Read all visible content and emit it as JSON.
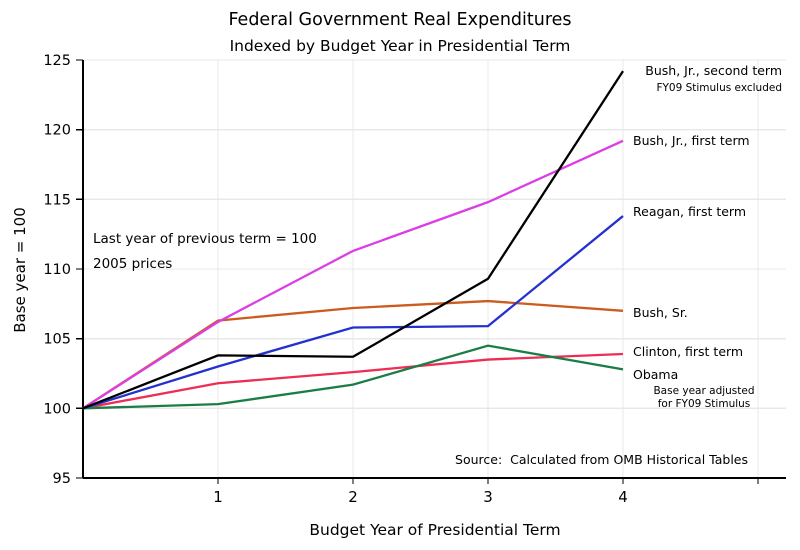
{
  "chart_data": {
    "type": "line",
    "title": "Federal Government Real Expenditures",
    "subtitle": "Indexed by Budget Year in Presidential Term",
    "xlabel": "Budget Year of Presidential Term",
    "ylabel": "Base year = 100",
    "x": [
      0,
      1,
      2,
      3,
      4
    ],
    "xticks": [
      1,
      2,
      3,
      4
    ],
    "yticks": [
      95,
      100,
      105,
      110,
      115,
      120,
      125
    ],
    "xlim": [
      0,
      5.2
    ],
    "ylim": [
      95,
      125
    ],
    "grid": true,
    "series": [
      {
        "name": "Bush, Jr., second term",
        "note": "FY09 Stimulus excluded",
        "color": "#000000",
        "values": [
          100,
          103.8,
          103.7,
          109.3,
          124.2
        ]
      },
      {
        "name": "Bush, Jr., first term",
        "color": "#DC3DE6",
        "values": [
          100,
          106.2,
          111.3,
          114.8,
          119.2
        ]
      },
      {
        "name": "Reagan, first term",
        "color": "#2531CE",
        "values": [
          100,
          103.0,
          105.8,
          105.9,
          113.8
        ]
      },
      {
        "name": "Bush, Sr.",
        "color": "#CC5B1E",
        "values": [
          100,
          106.3,
          107.2,
          107.7,
          107.0
        ]
      },
      {
        "name": "Clinton, first term",
        "color": "#EE2D55",
        "values": [
          100,
          101.8,
          102.6,
          103.5,
          103.9
        ]
      },
      {
        "name": "Obama",
        "note": "Base year adjusted\nfor FY09 Stimulus",
        "color": "#1B7D46",
        "values": [
          100,
          100.3,
          101.7,
          104.5,
          102.8
        ]
      }
    ],
    "annotations": {
      "line1": "Last year of previous term = 100",
      "line2": "2005 prices"
    },
    "source": "Source:  Calculated from OMB Historical Tables",
    "legend_position": "right-of-line-ends",
    "colors": {
      "grid": "#E8E8E8",
      "axis": "#000000",
      "text": "#000000"
    }
  }
}
